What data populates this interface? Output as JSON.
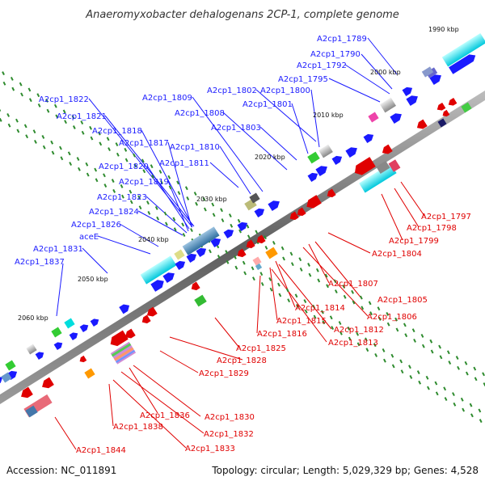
{
  "title": "Anaeromyxobacter dehalogenans 2CP-1, complete genome",
  "accession": "Accession: NC_011891",
  "summary": "Topology: circular; Length: 5,029,329 bp; Genes: 4,528",
  "colors": {
    "forward": "#1a1aff",
    "reverse": "#e00000",
    "backbone": "#808080",
    "tick": "#2e8b2e"
  },
  "scale_labels": [
    "1990 kbp",
    "2000 kbp",
    "2010 kbp",
    "2020 kbp",
    "2030 kbp",
    "2040 kbp",
    "2050 kbp",
    "2060 kbp"
  ],
  "forward_labels": [
    "A2cp1_1789",
    "A2cp1_1790",
    "A2cp1_1792",
    "A2cp1_1795",
    "A2cp1_1802",
    "A2cp1_1800",
    "A2cp1_1801",
    "A2cp1_1809",
    "A2cp1_1808",
    "A2cp1_1803",
    "A2cp1_1810",
    "A2cp1_1811",
    "A2cp1_1822",
    "A2cp1_1821",
    "A2cp1_1818",
    "A2cp1_1817",
    "A2cp1_1820",
    "A2cp1_1819",
    "A2cp1_1823",
    "A2cp1_1824",
    "A2cp1_1826",
    "aceE",
    "A2cp1_1831",
    "A2cp1_1837"
  ],
  "reverse_labels": [
    "A2cp1_1797",
    "A2cp1_1798",
    "A2cp1_1799",
    "A2cp1_1804",
    "A2cp1_1807",
    "A2cp1_1805",
    "A2cp1_1806",
    "A2cp1_1814",
    "A2cp1_1815",
    "A2cp1_1812",
    "A2cp1_1816",
    "A2cp1_1813",
    "A2cp1_1825",
    "A2cp1_1828",
    "A2cp1_1829",
    "A2cp1_1836",
    "A2cp1_1830",
    "A2cp1_1838",
    "A2cp1_1832",
    "A2cp1_1833",
    "A2cp1_1844"
  ]
}
